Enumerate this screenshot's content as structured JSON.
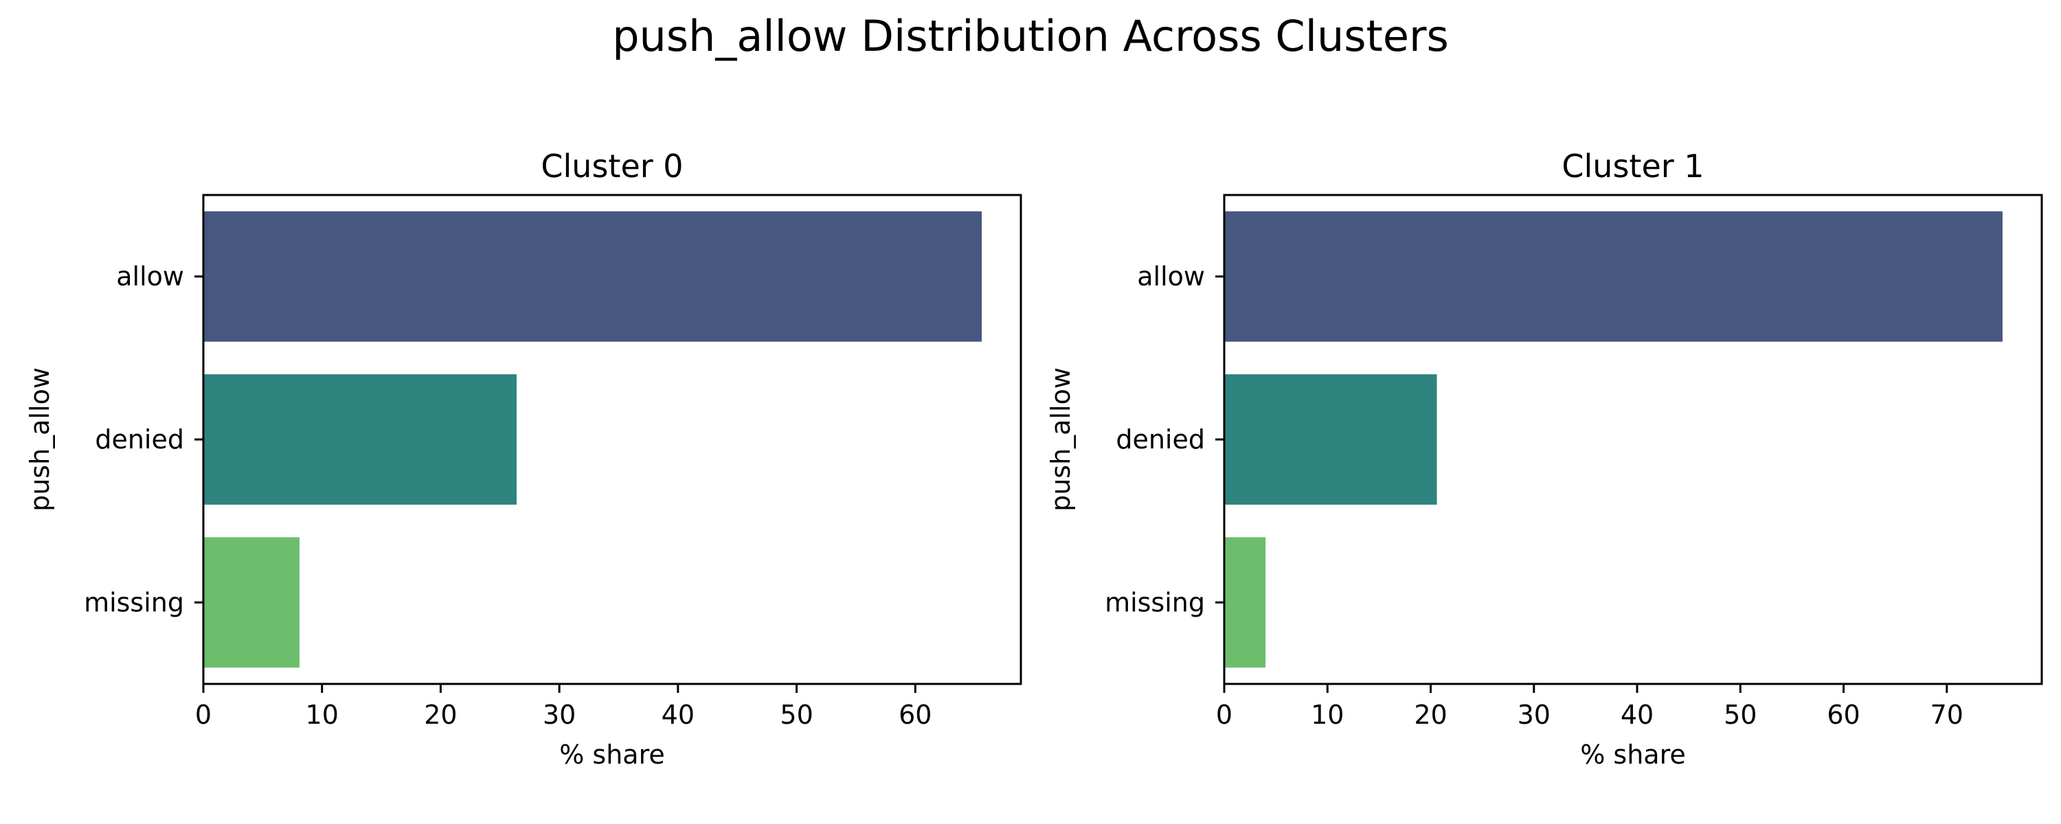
{
  "chart_data": {
    "title": "push_allow Distribution Across Clusters",
    "colors": {
      "allow": "#46587f",
      "denied": "#2e847e",
      "missing": "#6cbe6c"
    },
    "panels": [
      {
        "type": "bar",
        "orientation": "horizontal",
        "title": "Cluster 0",
        "xlabel": "% share",
        "ylabel": "push_allow",
        "categories": [
          "allow",
          "denied",
          "missing"
        ],
        "values": [
          65.6,
          26.4,
          8.1
        ],
        "xlim": [
          0,
          68.9
        ],
        "xticks": [
          0,
          10,
          20,
          30,
          40,
          50,
          60
        ],
        "grid": false
      },
      {
        "type": "bar",
        "orientation": "horizontal",
        "title": "Cluster 1",
        "xlabel": "% share",
        "ylabel": "push_allow",
        "categories": [
          "allow",
          "denied",
          "missing"
        ],
        "values": [
          75.4,
          20.6,
          4.0
        ],
        "xlim": [
          0,
          79.2
        ],
        "xticks": [
          0,
          10,
          20,
          30,
          40,
          50,
          60,
          70
        ],
        "grid": false
      }
    ]
  }
}
